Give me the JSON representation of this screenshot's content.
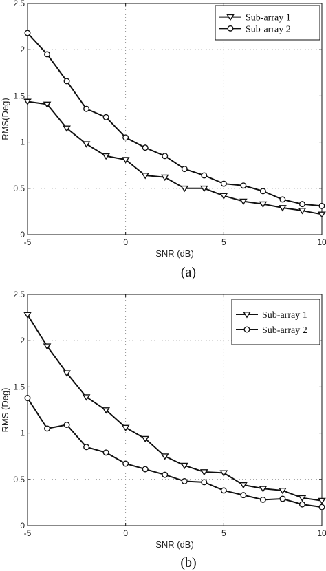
{
  "chart_data": [
    {
      "type": "line",
      "caption": "(a)",
      "xlabel": "SNR (dB)",
      "ylabel": "RMS(Deg)",
      "xlim": [
        -5,
        10
      ],
      "ylim": [
        0,
        2.5
      ],
      "xticks": [
        "-5",
        "0",
        "5",
        "10"
      ],
      "yticks": [
        "0",
        "0.5",
        "1",
        "1.5",
        "2",
        "2.5"
      ],
      "grid": "dotted",
      "legend_position": "top-right",
      "x": [
        -5,
        -4,
        -3,
        -2,
        -1,
        0,
        1,
        2,
        3,
        4,
        5,
        6,
        7,
        8,
        9,
        10
      ],
      "series": [
        {
          "name": "Sub-array 1",
          "marker": "triangle-down",
          "values": [
            1.44,
            1.41,
            1.15,
            0.98,
            0.85,
            0.81,
            0.64,
            0.62,
            0.5,
            0.5,
            0.42,
            0.36,
            0.33,
            0.29,
            0.26,
            0.22
          ]
        },
        {
          "name": "Sub-array 2",
          "marker": "circle",
          "values": [
            2.18,
            1.95,
            1.66,
            1.36,
            1.27,
            1.05,
            0.94,
            0.85,
            0.71,
            0.64,
            0.55,
            0.53,
            0.47,
            0.38,
            0.33,
            0.31
          ]
        }
      ]
    },
    {
      "type": "line",
      "caption": "(b)",
      "xlabel": "SNR (dB)",
      "ylabel": "RMS (Deg)",
      "xlim": [
        -5,
        10
      ],
      "ylim": [
        0,
        2.5
      ],
      "xticks": [
        "-5",
        "0",
        "5",
        "10"
      ],
      "yticks": [
        "0",
        "0.5",
        "1",
        "1.5",
        "2",
        "2.5"
      ],
      "grid": "dotted",
      "legend_position": "top-right",
      "x": [
        -5,
        -4,
        -3,
        -2,
        -1,
        0,
        1,
        2,
        3,
        4,
        5,
        6,
        7,
        8,
        9,
        10
      ],
      "series": [
        {
          "name": "Sub-array 1",
          "marker": "triangle-down",
          "values": [
            2.28,
            1.94,
            1.65,
            1.39,
            1.25,
            1.06,
            0.94,
            0.75,
            0.65,
            0.58,
            0.57,
            0.44,
            0.4,
            0.38,
            0.3,
            0.27
          ]
        },
        {
          "name": "Sub-array 2",
          "marker": "circle",
          "values": [
            1.38,
            1.05,
            1.09,
            0.85,
            0.79,
            0.67,
            0.61,
            0.55,
            0.48,
            0.47,
            0.38,
            0.33,
            0.28,
            0.29,
            0.23,
            0.2
          ]
        }
      ]
    }
  ]
}
